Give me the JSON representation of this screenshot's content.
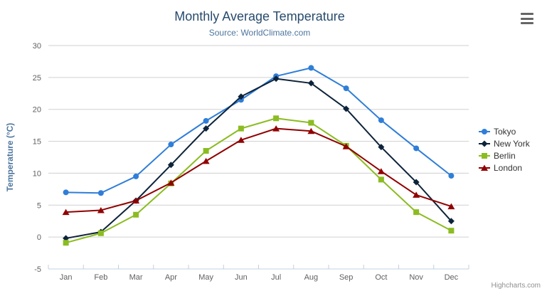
{
  "header": {
    "title": "Monthly Average Temperature",
    "subtitle": "Source: WorldClimate.com"
  },
  "toolbar": {
    "menu_icon": "hamburger-icon"
  },
  "credits": "Highcharts.com",
  "colors": {
    "title": "#274b6d",
    "subtitle": "#4d759e",
    "axis_title": "#4d759e",
    "axis_labels": "#606060",
    "grid": "#d0d0d0",
    "axis_line": "#c0d0e0",
    "legend_text": "#333333",
    "credit": "#909090",
    "background": "#ffffff"
  },
  "chart_data": {
    "type": "line",
    "title": "Monthly Average Temperature",
    "subtitle": "Source: WorldClimate.com",
    "xlabel": "",
    "ylabel": "Temperature (°C)",
    "categories": [
      "Jan",
      "Feb",
      "Mar",
      "Apr",
      "May",
      "Jun",
      "Jul",
      "Aug",
      "Sep",
      "Oct",
      "Nov",
      "Dec"
    ],
    "series": [
      {
        "name": "Tokyo",
        "color": "#2f7ed8",
        "marker": "circle",
        "values": [
          7.0,
          6.9,
          9.5,
          14.5,
          18.2,
          21.5,
          25.2,
          26.5,
          23.3,
          18.3,
          13.9,
          9.6
        ]
      },
      {
        "name": "New York",
        "color": "#0d233a",
        "marker": "diamond",
        "values": [
          -0.2,
          0.8,
          5.7,
          11.3,
          17.0,
          22.0,
          24.8,
          24.1,
          20.1,
          14.1,
          8.6,
          2.5
        ]
      },
      {
        "name": "Berlin",
        "color": "#8bbc21",
        "marker": "square",
        "values": [
          -0.9,
          0.6,
          3.5,
          8.4,
          13.5,
          17.0,
          18.6,
          17.9,
          14.3,
          9.0,
          3.9,
          1.0
        ]
      },
      {
        "name": "London",
        "color": "#910000",
        "marker": "triangle",
        "values": [
          3.9,
          4.2,
          5.7,
          8.5,
          11.9,
          15.2,
          17.0,
          16.6,
          14.2,
          10.3,
          6.6,
          4.8
        ]
      }
    ],
    "ylim": [
      -5,
      30
    ],
    "yticks": [
      -5,
      0,
      5,
      10,
      15,
      20,
      25,
      30
    ],
    "grid": true,
    "legend_position": "right"
  }
}
